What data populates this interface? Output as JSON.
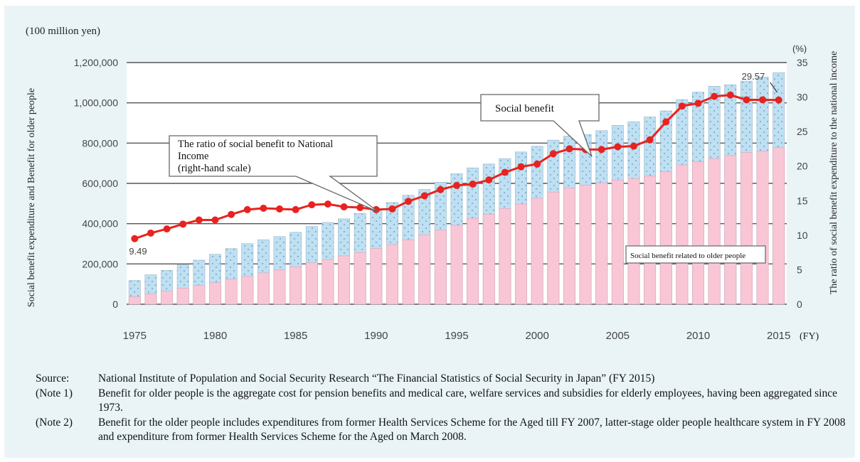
{
  "chart_data": {
    "type": "bar+line",
    "left_unit": "(100 million yen)",
    "left_axis_label": "Social benefit expenditure and Benefit for older people",
    "right_unit": "(%)",
    "right_axis_label": "The ratio of social benefit expenditure to the national income",
    "x_unit": "(FY)",
    "x_tick_labels": [
      "1975",
      "1980",
      "1985",
      "1990",
      "1995",
      "2000",
      "2005",
      "2010",
      "2015"
    ],
    "y_left_ticks": [
      "0",
      "200,000",
      "400,000",
      "600,000",
      "800,000",
      "1,000,000",
      "1,200,000"
    ],
    "y_left_range": [
      0,
      1200000
    ],
    "y_right_ticks": [
      "0",
      "5",
      "10",
      "15",
      "20",
      "25",
      "30",
      "35"
    ],
    "y_right_range": [
      0,
      35
    ],
    "grid": "horizontal",
    "years": [
      1975,
      1976,
      1977,
      1978,
      1979,
      1980,
      1981,
      1982,
      1983,
      1984,
      1985,
      1986,
      1987,
      1988,
      1989,
      1990,
      1991,
      1992,
      1993,
      1994,
      1995,
      1996,
      1997,
      1998,
      1999,
      2000,
      2001,
      2002,
      2003,
      2004,
      2005,
      2006,
      2007,
      2008,
      2009,
      2010,
      2011,
      2012,
      2013,
      2014,
      2015
    ],
    "series": [
      {
        "name": "Social benefit",
        "kind": "bar",
        "color": "#bfe0f2",
        "values": [
          118000,
          146000,
          168000,
          197000,
          219000,
          248000,
          276000,
          301000,
          320000,
          336000,
          357000,
          386000,
          406000,
          424000,
          451000,
          474000,
          505000,
          541000,
          570000,
          606000,
          648000,
          677000,
          696000,
          723000,
          756000,
          784000,
          815000,
          835000,
          843000,
          862000,
          888000,
          906000,
          930000,
          960000,
          1016000,
          1053000,
          1082000,
          1090000,
          1108000,
          1128000,
          1150000
        ]
      },
      {
        "name": "Social benefit related to older people",
        "kind": "bar",
        "color": "#f9c6d6",
        "values": [
          38000,
          51000,
          65000,
          80000,
          94000,
          107000,
          124000,
          138000,
          156000,
          170000,
          186000,
          206000,
          222000,
          240000,
          257000,
          277000,
          296000,
          320000,
          345000,
          368000,
          392000,
          427000,
          446000,
          475000,
          497000,
          526000,
          557000,
          577000,
          591000,
          603000,
          616000,
          624000,
          636000,
          659000,
          692000,
          707000,
          723000,
          738000,
          754000,
          761000,
          778000
        ]
      },
      {
        "name": "The ratio of social benefit to National Income",
        "kind": "line",
        "axis": "right",
        "color": "#e8231f",
        "values": [
          9.49,
          10.3,
          10.9,
          11.6,
          12.2,
          12.2,
          13.0,
          13.7,
          13.9,
          13.8,
          13.7,
          14.4,
          14.5,
          14.1,
          14.0,
          13.7,
          13.8,
          14.9,
          15.7,
          16.6,
          17.2,
          17.4,
          18.0,
          19.1,
          19.9,
          20.3,
          21.8,
          22.5,
          22.4,
          22.4,
          22.8,
          22.9,
          23.8,
          26.4,
          28.7,
          29.1,
          30.1,
          30.3,
          29.6,
          29.6,
          29.57
        ]
      }
    ],
    "annotations": {
      "start_value": "9.49",
      "end_value": "29.57",
      "callout_ratio_lines": [
        "The ratio of social benefit to National",
        "Income",
        "(right-hand scale)"
      ],
      "callout_social": "Social benefit",
      "callout_older": "Social benefit related to older people"
    },
    "colors": {
      "background": "#eaf4f7",
      "plot_background": "#ffffff",
      "social_bar": "#bfe0f2",
      "social_dots": "#8fb8d4",
      "older_bar": "#f9c6d6",
      "line": "#e8231f",
      "axis_text": "#333333"
    }
  },
  "notes": [
    {
      "key": "Source:",
      "text": "National Institute of Population and Social Security Research “The Financial Statistics of Social Security in Japan” (FY 2015)"
    },
    {
      "key": "(Note 1)",
      "text": "Benefit for older people is the aggregate cost for pension benefits and medical care, welfare services and subsidies for elderly employees, having been aggregated since 1973."
    },
    {
      "key": "(Note 2)",
      "text": "Benefit for the older people includes expenditures from former Health Services Scheme for the Aged till FY 2007, latter-stage older people healthcare system in FY 2008 and expenditure from former Health Services Scheme for the Aged on March 2008."
    }
  ]
}
